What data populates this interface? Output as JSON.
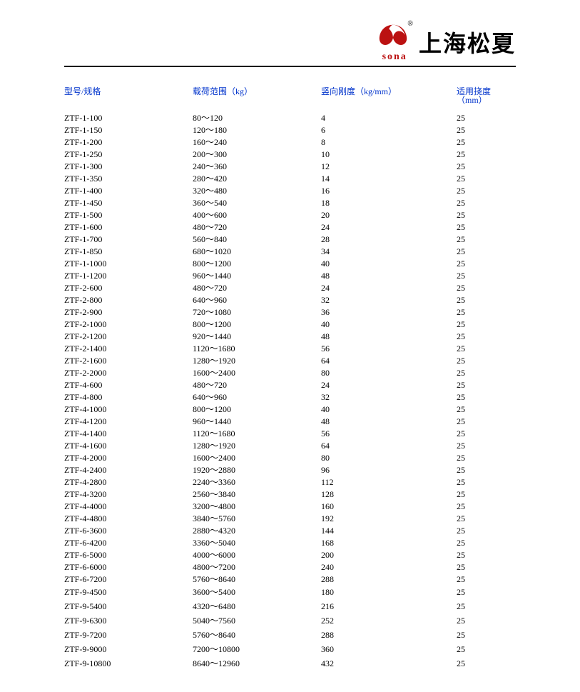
{
  "header": {
    "brand_cn": "上海松夏",
    "brand_en": "sona",
    "registered": "®"
  },
  "table": {
    "header_color": "#0033cc",
    "columns": [
      "型号/规格",
      "载荷范围（kg）",
      "竖向刚度（kg/mm）",
      "适用挠度（mm）"
    ],
    "rows": [
      [
        "ZTF-1-100",
        "80～120",
        "4",
        "25"
      ],
      [
        "ZTF-1-150",
        "120～180",
        "6",
        "25"
      ],
      [
        "ZTF-1-200",
        "160～240",
        "8",
        "25"
      ],
      [
        "ZTF-1-250",
        "200～300",
        "10",
        "25"
      ],
      [
        "ZTF-1-300",
        "240～360",
        "12",
        "25"
      ],
      [
        "ZTF-1-350",
        "280～420",
        "14",
        "25"
      ],
      [
        "ZTF-1-400",
        "320～480",
        "16",
        "25"
      ],
      [
        "ZTF-1-450",
        "360～540",
        "18",
        "25"
      ],
      [
        "ZTF-1-500",
        "400～600",
        "20",
        "25"
      ],
      [
        "ZTF-1-600",
        "480～720",
        "24",
        "25"
      ],
      [
        "ZTF-1-700",
        "560～840",
        "28",
        "25"
      ],
      [
        "ZTF-1-850",
        "680～1020",
        "34",
        "25"
      ],
      [
        "ZTF-1-1000",
        "800～1200",
        "40",
        "25"
      ],
      [
        "ZTF-1-1200",
        "960～1440",
        "48",
        "25"
      ],
      [
        "ZTF-2-600",
        "480～720",
        "24",
        "25"
      ],
      [
        "ZTF-2-800",
        "640～960",
        "32",
        "25"
      ],
      [
        "ZTF-2-900",
        "720～1080",
        "36",
        "25"
      ],
      [
        "ZTF-2-1000",
        "800～1200",
        "40",
        "25"
      ],
      [
        "ZTF-2-1200",
        "920～1440",
        "48",
        "25"
      ],
      [
        "ZTF-2-1400",
        "1120～1680",
        "56",
        "25"
      ],
      [
        "ZTF-2-1600",
        "1280～1920",
        "64",
        "25"
      ],
      [
        "ZTF-2-2000",
        "1600～2400",
        "80",
        "25"
      ],
      [
        "ZTF-4-600",
        "480～720",
        "24",
        "25"
      ],
      [
        "ZTF-4-800",
        "640～960",
        "32",
        "25"
      ],
      [
        "ZTF-4-1000",
        "800～1200",
        "40",
        "25"
      ],
      [
        "ZTF-4-1200",
        "960～1440",
        "48",
        "25"
      ],
      [
        "ZTF-4-1400",
        "1120～1680",
        "56",
        "25"
      ],
      [
        "ZTF-4-1600",
        "1280～1920",
        "64",
        "25"
      ],
      [
        "ZTF-4-2000",
        "1600～2400",
        "80",
        "25"
      ],
      [
        "ZTF-4-2400",
        "1920～2880",
        "96",
        "25"
      ],
      [
        "ZTF-4-2800",
        "2240～3360",
        "112",
        "25"
      ],
      [
        "ZTF-4-3200",
        "2560～3840",
        "128",
        "25"
      ],
      [
        "ZTF-4-4000",
        "3200～4800",
        "160",
        "25"
      ],
      [
        "ZTF-4-4800",
        "3840～5760",
        "192",
        "25"
      ],
      [
        "ZTF-6-3600",
        "2880～4320",
        "144",
        "25"
      ],
      [
        "ZTF-6-4200",
        "3360～5040",
        "168",
        "25"
      ],
      [
        "ZTF-6-5000",
        "4000～6000",
        "200",
        "25"
      ],
      [
        "ZTF-6-6000",
        "4800～7200",
        "240",
        "25"
      ],
      [
        "ZTF-6-7200",
        "5760～8640",
        "288",
        "25"
      ],
      [
        "ZTF-9-4500",
        "3600～5400",
        "180",
        "25"
      ],
      [
        "ZTF-9-5400",
        "4320～6480",
        "216",
        "25"
      ],
      [
        "ZTF-9-6300",
        "5040～7560",
        "252",
        "25"
      ],
      [
        "ZTF-9-7200",
        "5760～8640",
        "288",
        "25"
      ],
      [
        "ZTF-9-9000",
        "7200～10800",
        "360",
        "25"
      ],
      [
        "ZTF-9-10800",
        "8640～12960",
        "432",
        "25"
      ]
    ]
  }
}
